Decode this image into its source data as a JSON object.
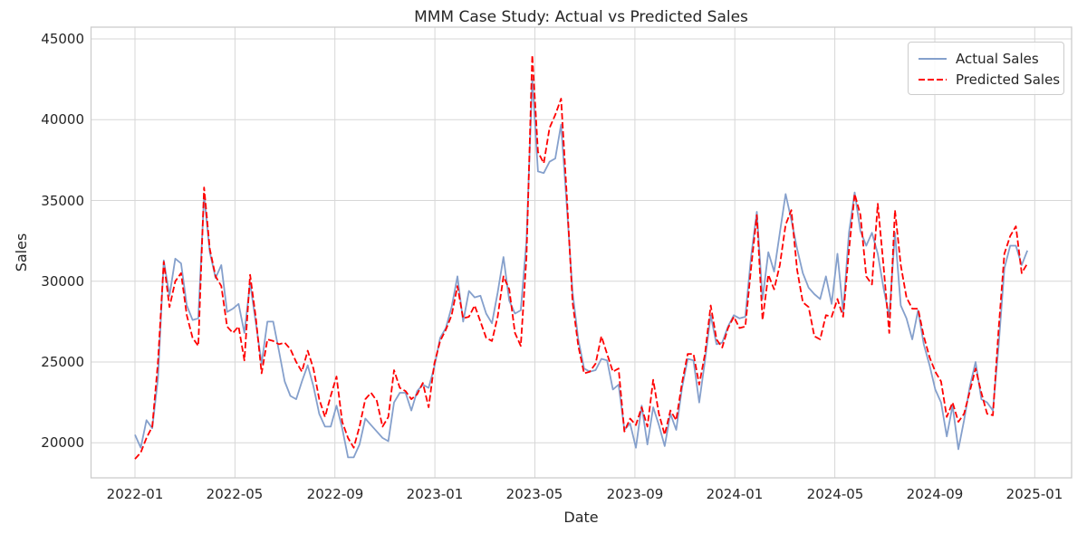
{
  "accent_blue": "#85a0cc",
  "accent_red": "#ff0000",
  "grid_color": "#d7d7d7",
  "spine_color": "#cccccc",
  "text_color": "#262626",
  "chart_data": {
    "type": "line",
    "title": "MMM Case Study: Actual vs Predicted Sales",
    "xlabel": "Date",
    "ylabel": "Sales",
    "x_unit": "week",
    "x_range_label": "2022-01 to 2025-01",
    "x_tick_labels": [
      "2022-01",
      "2022-05",
      "2022-09",
      "2023-01",
      "2023-05",
      "2023-09",
      "2024-01",
      "2024-05",
      "2024-09",
      "2025-01"
    ],
    "y_ticks": [
      20000,
      25000,
      30000,
      35000,
      40000,
      45000
    ],
    "ylim": [
      17750,
      45750
    ],
    "grid": true,
    "legend_position": "upper right",
    "series": [
      {
        "name": "Actual Sales",
        "color": "#85a0cc",
        "line_style": "solid",
        "values": [
          20500,
          19700,
          21400,
          20900,
          24000,
          31300,
          29100,
          31400,
          31100,
          28500,
          27600,
          27700,
          35300,
          31800,
          30200,
          31000,
          28100,
          28300,
          28600,
          26800,
          29900,
          27400,
          24900,
          27500,
          27500,
          25700,
          23800,
          22900,
          22700,
          23800,
          24800,
          23500,
          21800,
          21000,
          21000,
          22300,
          20900,
          19100,
          19100,
          19900,
          21500,
          21100,
          20700,
          20300,
          20100,
          22500,
          23100,
          23100,
          22000,
          23200,
          23600,
          23400,
          24700,
          26500,
          27100,
          28400,
          30300,
          27500,
          29400,
          29000,
          29100,
          28000,
          27400,
          29300,
          31500,
          28800,
          28000,
          28200,
          32500,
          42500,
          36800,
          36700,
          37400,
          37600,
          39700,
          34700,
          29300,
          26400,
          24600,
          24400,
          24500,
          25200,
          25100,
          23300,
          23600,
          20800,
          21200,
          19700,
          22300,
          19900,
          22200,
          21100,
          19800,
          21800,
          20800,
          23400,
          25200,
          25100,
          22500,
          25100,
          27900,
          26100,
          26200,
          27200,
          27900,
          27700,
          27800,
          31500,
          34300,
          28900,
          31800,
          30600,
          33000,
          35400,
          33800,
          32000,
          30500,
          29600,
          29200,
          28900,
          30300,
          28600,
          31700,
          28100,
          33000,
          35500,
          33100,
          32200,
          33000,
          31700,
          29600,
          27800,
          33000,
          28500,
          27700,
          26400,
          28200,
          26100,
          24800,
          23300,
          22500,
          20400,
          22300,
          19600,
          21400,
          23500,
          25000,
          22700,
          22500,
          22000,
          26000,
          30800,
          32200,
          32200,
          31000,
          31900
        ]
      },
      {
        "name": "Predicted Sales",
        "color": "#ff0000",
        "line_style": "dashed",
        "values": [
          19000,
          19400,
          20300,
          21000,
          25000,
          31200,
          28400,
          30000,
          30500,
          27900,
          26500,
          26000,
          35800,
          32000,
          30300,
          29700,
          27200,
          26800,
          27200,
          25100,
          30400,
          27700,
          24300,
          26400,
          26300,
          26100,
          26200,
          25800,
          25000,
          24400,
          25700,
          24600,
          22700,
          21600,
          22900,
          24100,
          21300,
          20300,
          19700,
          21000,
          22700,
          23100,
          22600,
          21000,
          21600,
          24500,
          23400,
          23200,
          22700,
          23000,
          23700,
          22200,
          24900,
          26300,
          27000,
          27900,
          29700,
          27700,
          27800,
          28500,
          27500,
          26500,
          26300,
          27800,
          30300,
          29500,
          26800,
          26000,
          31500,
          44000,
          38000,
          37300,
          39500,
          40300,
          41300,
          35300,
          28700,
          26000,
          24300,
          24400,
          24900,
          26600,
          25500,
          24400,
          24600,
          20700,
          21500,
          21100,
          22200,
          21000,
          23900,
          21800,
          20500,
          22000,
          21400,
          23700,
          25500,
          25500,
          23600,
          25500,
          28500,
          26400,
          25900,
          27100,
          27800,
          27100,
          27200,
          30800,
          34100,
          27600,
          30400,
          29500,
          31000,
          33500,
          34400,
          30700,
          28700,
          28400,
          26600,
          26400,
          27900,
          27800,
          28900,
          27800,
          31900,
          35400,
          34100,
          30300,
          29800,
          34800,
          31000,
          26800,
          34400,
          31000,
          29000,
          28300,
          28300,
          26600,
          25300,
          24400,
          23800,
          21600,
          22500,
          21300,
          21800,
          23200,
          24600,
          23100,
          21800,
          21700,
          27000,
          31700,
          32800,
          33400,
          30500,
          31100
        ]
      }
    ]
  }
}
